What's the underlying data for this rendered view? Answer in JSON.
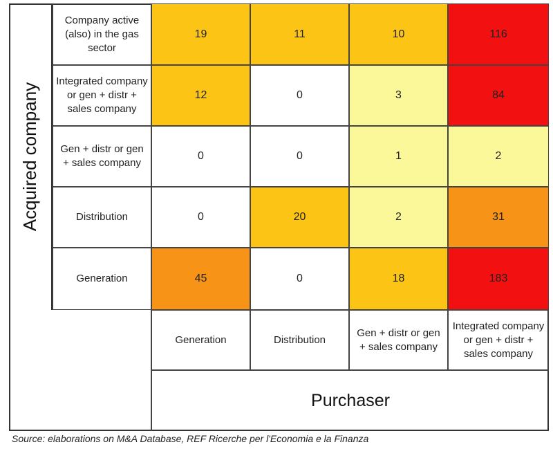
{
  "chart_data": {
    "type": "heatmap",
    "y_axis_label": "Acquired company",
    "x_axis_label": "Purchaser",
    "rows": [
      "Company active (also) in the gas sector",
      "Integrated company or gen + distr + sales company",
      "Gen + distr or gen + sales company",
      "Distribution",
      "Generation"
    ],
    "columns": [
      "Generation",
      "Distribution",
      "Gen + distr or gen + sales company",
      "Integrated company or gen + distr + sales company"
    ],
    "values": [
      [
        19,
        11,
        10,
        116
      ],
      [
        12,
        0,
        3,
        84
      ],
      [
        0,
        0,
        1,
        2
      ],
      [
        0,
        20,
        2,
        31
      ],
      [
        45,
        0,
        18,
        183
      ]
    ],
    "cell_colors": [
      [
        "#fcc414",
        "#fcc414",
        "#fcc414",
        "#f21010"
      ],
      [
        "#fcc414",
        "#ffffff",
        "#fbf89a",
        "#f21010"
      ],
      [
        "#ffffff",
        "#ffffff",
        "#fbf89a",
        "#fbf89a"
      ],
      [
        "#ffffff",
        "#fcc414",
        "#fbf89a",
        "#f79418"
      ],
      [
        "#f79418",
        "#ffffff",
        "#fcc414",
        "#f21010"
      ]
    ],
    "source": "Source: elaborations on M&A Database, REF Ricerche per l'Economia e la Finanza"
  }
}
